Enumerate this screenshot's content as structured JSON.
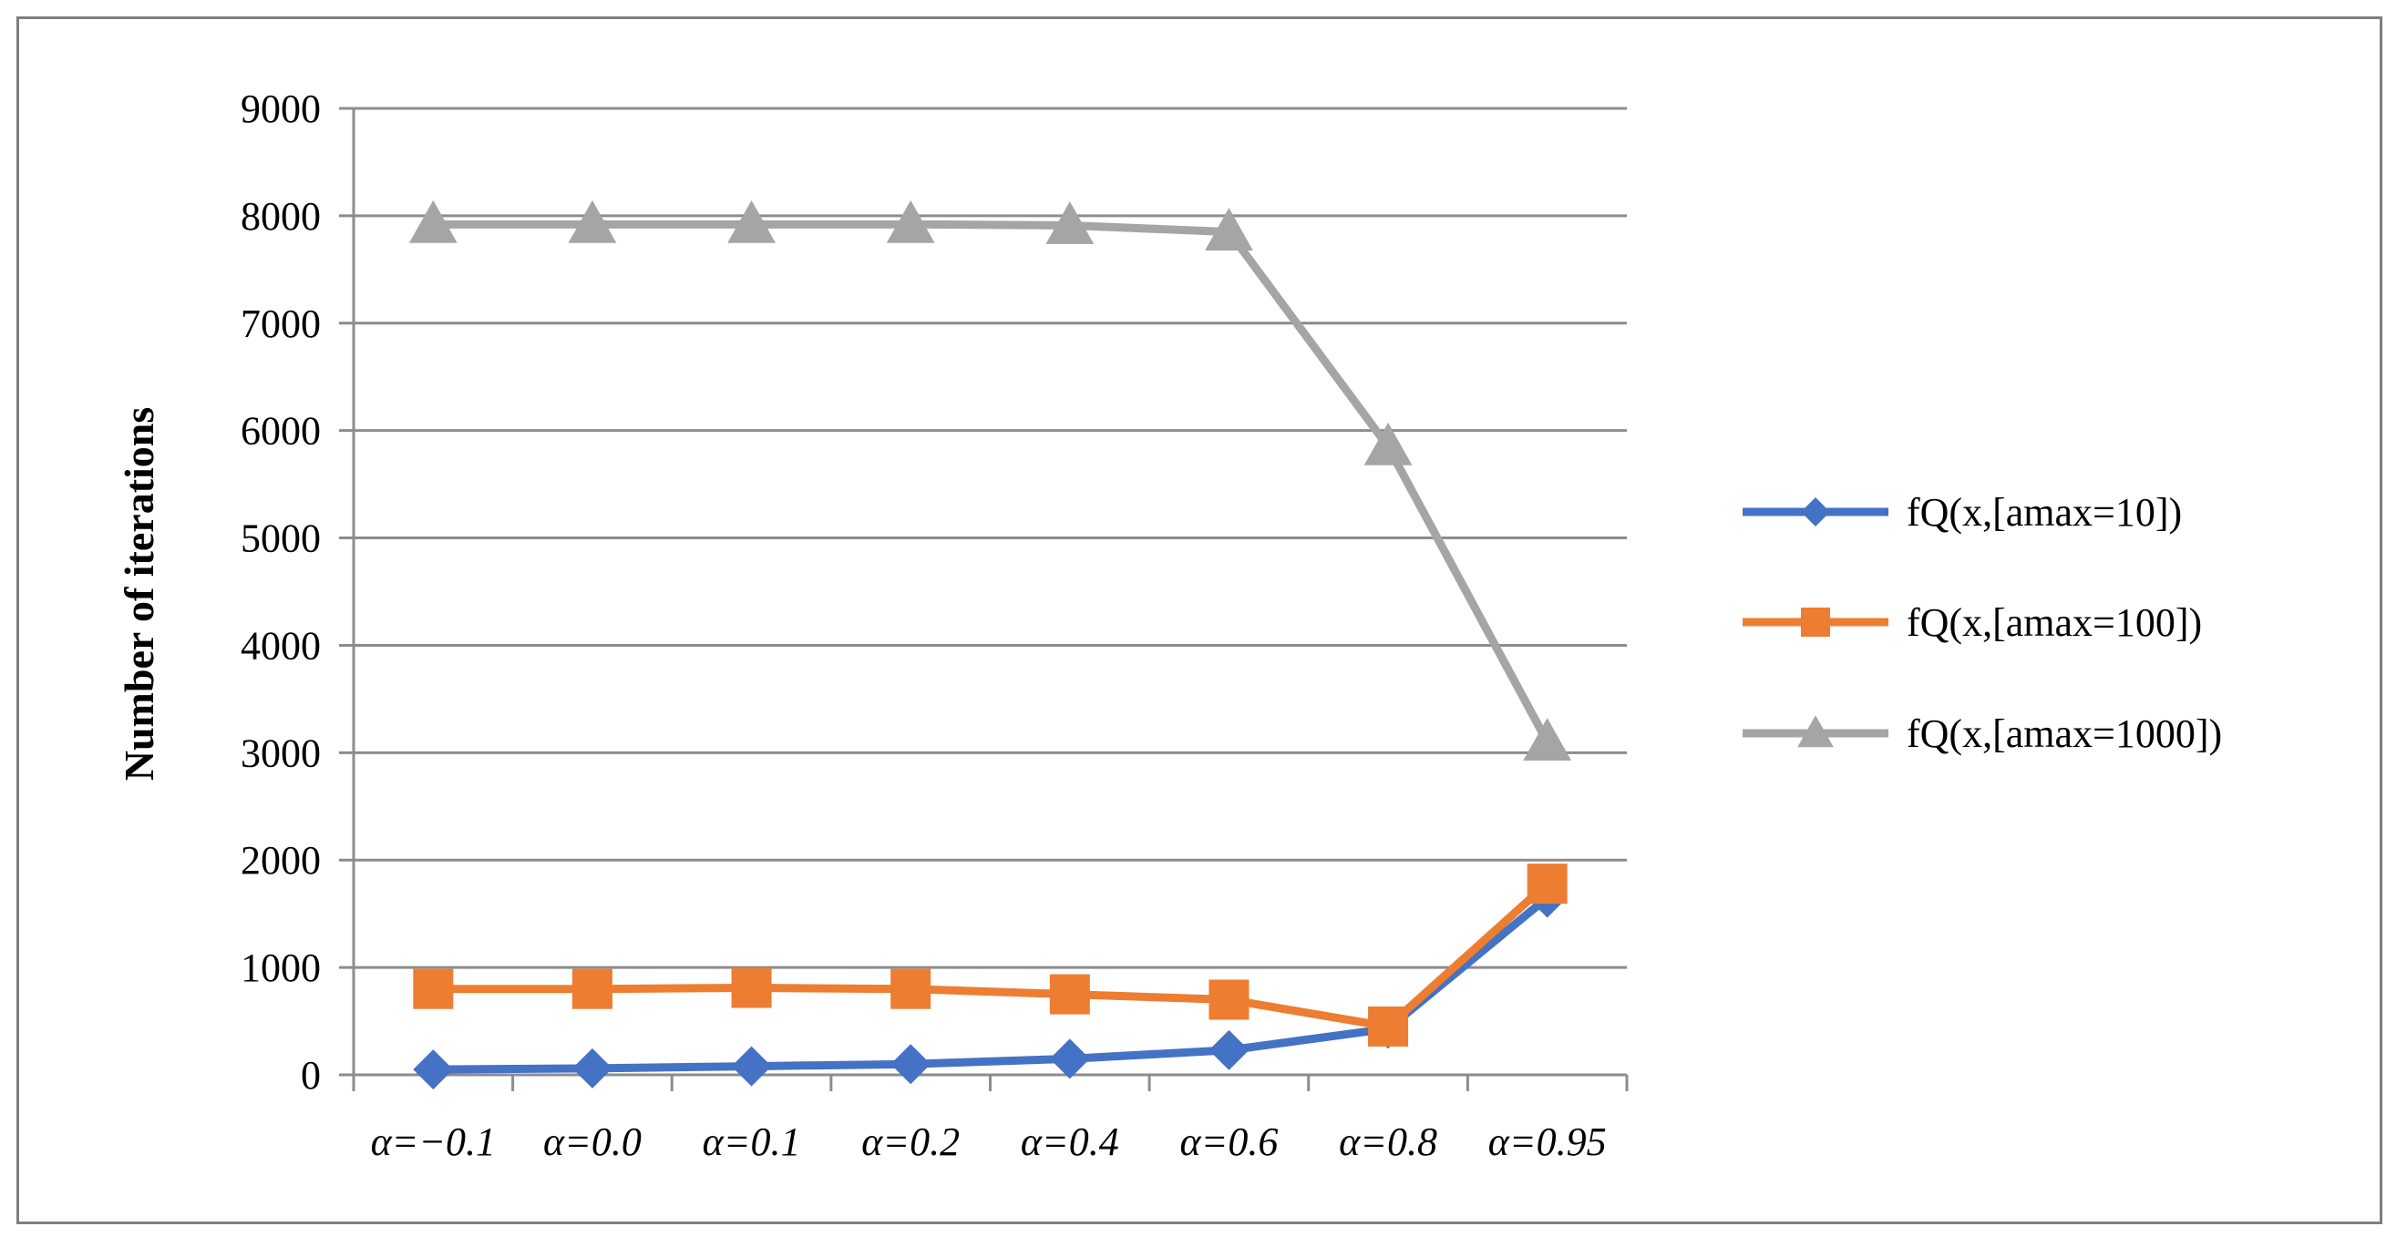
{
  "chart_data": {
    "type": "line",
    "title": "",
    "xlabel": "",
    "ylabel": "Number of iterations",
    "ylim": [
      0,
      9000
    ],
    "yticks": [
      0,
      1000,
      2000,
      3000,
      4000,
      5000,
      6000,
      7000,
      8000,
      9000
    ],
    "grid": "horizontal",
    "legend": "right",
    "categories": [
      "α=−0.1",
      "α=0.0",
      "α=0.1",
      "α=0.2",
      "α=0.4",
      "α=0.6",
      "α=0.8",
      "α=0.95"
    ],
    "series": [
      {
        "name": "fQ(x,[amax=10])",
        "color": "#4472c4",
        "marker": "diamond",
        "values": [
          50,
          60,
          80,
          100,
          150,
          230,
          430,
          1650
        ]
      },
      {
        "name": "fQ(x,[amax=100])",
        "color": "#ed7d31",
        "marker": "square",
        "values": [
          800,
          800,
          810,
          800,
          750,
          700,
          450,
          1780
        ]
      },
      {
        "name": "fQ(x,[amax=1000])",
        "color": "#a5a5a5",
        "marker": "triangle",
        "values": [
          7920,
          7920,
          7920,
          7920,
          7910,
          7850,
          5850,
          3100
        ]
      }
    ]
  }
}
